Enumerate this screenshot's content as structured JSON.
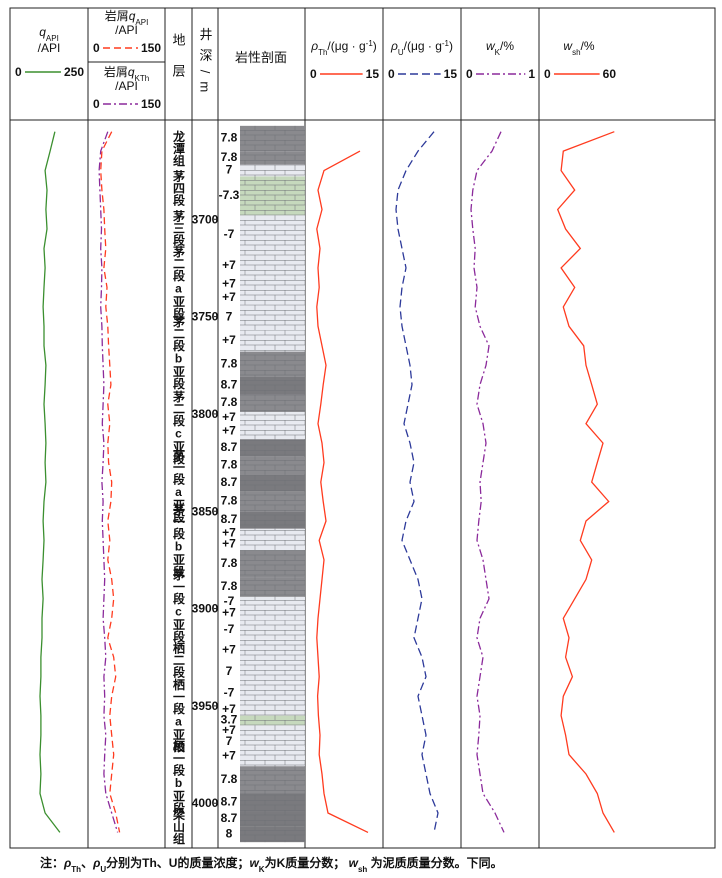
{
  "chart_data": {
    "type": "well_log",
    "formation_header": "地层",
    "depth_header": "井深/m",
    "lithology_header": "岩性剖面",
    "ylim": [
      3649,
      4023
    ],
    "yticks": [
      3700,
      3750,
      3800,
      3850,
      3900,
      3950,
      4000
    ],
    "depth": [
      3655,
      3665,
      3675,
      3685,
      3695,
      3705,
      3715,
      3725,
      3735,
      3745,
      3755,
      3765,
      3775,
      3785,
      3795,
      3805,
      3815,
      3825,
      3835,
      3845,
      3855,
      3865,
      3875,
      3885,
      3895,
      3905,
      3915,
      3925,
      3935,
      3945,
      3955,
      3965,
      3975,
      3985,
      3995,
      4005,
      4015
    ],
    "tracks": [
      {
        "label": [
          {
            "t": "q",
            "s": "i"
          },
          {
            "t": "API",
            "s": "sub"
          }
        ],
        "unit": "/API",
        "xlim": [
          0,
          250
        ],
        "xticks": [
          0,
          250
        ],
        "color": "#3b8f2f",
        "dash": "none",
        "values": [
          146,
          129,
          111,
          118,
          114,
          118,
          107,
          111,
          107,
          104,
          107,
          107,
          114,
          111,
          107,
          111,
          114,
          111,
          114,
          107,
          104,
          107,
          104,
          100,
          104,
          100,
          100,
          96,
          96,
          93,
          96,
          96,
          93,
          96,
          93,
          111,
          164
        ]
      },
      {
        "label": [
          {
            "t": "岩屑"
          },
          {
            "t": "q",
            "s": "i"
          },
          {
            "t": "API",
            "s": "sub"
          }
        ],
        "unit": "/API",
        "xlim": [
          0,
          150
        ],
        "xticks": [
          0,
          150
        ],
        "color": "#ff3b1f",
        "dash": "7,4",
        "values": [
          40,
          15,
          12,
          15,
          20,
          22,
          25,
          20,
          28,
          25,
          30,
          32,
          35,
          38,
          30,
          35,
          30,
          32,
          40,
          38,
          30,
          35,
          30,
          40,
          45,
          40,
          30,
          45,
          50,
          40,
          35,
          40,
          45,
          40,
          35,
          50,
          60
        ]
      },
      {
        "label": [
          {
            "t": "岩屑"
          },
          {
            "t": "q",
            "s": "i"
          },
          {
            "t": "KTh",
            "s": "sub"
          }
        ],
        "unit": "/API",
        "xlim": [
          0,
          150
        ],
        "xticks": [
          0,
          150
        ],
        "color": "#8b2a9b",
        "dash": "8,3,2,3",
        "values": [
          30,
          12,
          8,
          10,
          12,
          14,
          12,
          15,
          14,
          12,
          15,
          16,
          18,
          20,
          18,
          16,
          20,
          18,
          15,
          18,
          16,
          18,
          20,
          22,
          20,
          18,
          22,
          25,
          20,
          22,
          20,
          25,
          22,
          20,
          25,
          40,
          55
        ]
      },
      {
        "label": [
          {
            "t": "ρ",
            "s": "i"
          },
          {
            "t": "Th",
            "s": "sub"
          },
          {
            "t": "/(μg · g"
          },
          {
            "t": "-1",
            "s": "sup"
          },
          {
            "t": ")"
          }
        ],
        "xlim": [
          0,
          15
        ],
        "xticks": [
          0,
          15
        ],
        "color": "#ff3b1f",
        "dash": "none",
        "values": [
          null,
          12,
          3,
          1.5,
          2.5,
          1.2,
          2,
          1.5,
          1.8,
          1.2,
          1.5,
          2.5,
          3.5,
          2.8,
          2.2,
          1.5,
          2.5,
          3,
          2.2,
          2.8,
          3.5,
          1.8,
          3,
          2.5,
          2,
          1.5,
          1.2,
          1.5,
          1.8,
          1.4,
          1.6,
          2,
          1.8,
          2.5,
          3,
          4,
          14
        ]
      },
      {
        "label": [
          {
            "t": "ρ",
            "s": "i"
          },
          {
            "t": "U",
            "s": "sub"
          },
          {
            "t": "/(μg · g"
          },
          {
            "t": "-1",
            "s": "sup"
          },
          {
            "t": ")"
          }
        ],
        "xlim": [
          0,
          15
        ],
        "xticks": [
          0,
          15
        ],
        "color": "#2d3a9a",
        "dash": "8,4",
        "values": [
          11,
          7,
          4,
          2,
          1.5,
          2,
          3,
          4,
          3,
          2.5,
          3,
          4,
          5,
          5.5,
          4.5,
          3.5,
          5,
          6,
          5,
          6,
          4,
          3,
          5,
          7,
          8,
          7,
          6,
          8,
          9,
          7,
          8,
          9,
          8,
          9,
          10,
          12,
          11
        ]
      },
      {
        "label": [
          {
            "t": "w",
            "s": "i"
          },
          {
            "t": "K",
            "s": "sub"
          },
          {
            "t": "/%"
          }
        ],
        "xlim": [
          0,
          1
        ],
        "xticks": [
          0,
          1
        ],
        "color": "#8b2a9b",
        "dash": "8,3,2,3",
        "values": [
          0.55,
          0.4,
          0.15,
          0.08,
          0.05,
          0.08,
          0.12,
          0.1,
          0.15,
          0.12,
          0.2,
          0.35,
          0.3,
          0.2,
          0.15,
          0.25,
          0.3,
          0.25,
          0.2,
          0.22,
          0.18,
          0.15,
          0.25,
          0.3,
          0.35,
          0.2,
          0.15,
          0.25,
          0.2,
          0.15,
          0.2,
          0.18,
          0.15,
          0.2,
          0.25,
          0.45,
          0.6
        ]
      },
      {
        "label": [
          {
            "t": "w",
            "s": "i"
          },
          {
            "t": "sh",
            "s": "sub"
          },
          {
            "t": "/%"
          }
        ],
        "xlim": [
          0,
          60
        ],
        "xticks": [
          0,
          60
        ],
        "color": "#ff3b1f",
        "dash": "none",
        "values": [
          55,
          10,
          8,
          20,
          5,
          12,
          25,
          8,
          20,
          10,
          15,
          28,
          30,
          35,
          40,
          30,
          45,
          40,
          35,
          50,
          30,
          25,
          35,
          30,
          20,
          10,
          15,
          12,
          18,
          10,
          8,
          12,
          15,
          30,
          40,
          45,
          55
        ]
      }
    ],
    "formations": [
      {
        "name": "龙潭组",
        "top": 3652,
        "base": 3675
      },
      {
        "name": "茅四段",
        "top": 3675,
        "base": 3693
      },
      {
        "name": "茅三段",
        "top": 3693,
        "base": 3716
      },
      {
        "name": "茅二段a亚段",
        "top": 3716,
        "base": 3749
      },
      {
        "name": "茅二段b亚段",
        "top": 3749,
        "base": 3788
      },
      {
        "name": "茅二段c亚段",
        "top": 3788,
        "base": 3826
      },
      {
        "name": "茅一段a亚段",
        "top": 3828,
        "base": 3846
      },
      {
        "name": "茅一段b亚段",
        "top": 3848,
        "base": 3882
      },
      {
        "name": "茅一段c亚段",
        "top": 3882,
        "base": 3915
      },
      {
        "name": "栖二段",
        "top": 3915,
        "base": 3938
      },
      {
        "name": "栖一段a亚段",
        "top": 3938,
        "base": 3972
      },
      {
        "name": "栖一段b亚段",
        "top": 3972,
        "base": 4001
      },
      {
        "name": "梁山组",
        "top": 4001,
        "base": 4023
      }
    ],
    "lithology": [
      {
        "top": 3652,
        "base": 3665,
        "code": "7.8",
        "color": "#8a8a8e"
      },
      {
        "top": 3665,
        "base": 3672,
        "code": "7.8",
        "color": "#8a8a8e"
      },
      {
        "top": 3672,
        "base": 3678,
        "code": "7",
        "color": "#e8eaf0"
      },
      {
        "top": 3678,
        "base": 3698,
        "code": "-7.3",
        "color": "#c6d9bd"
      },
      {
        "top": 3698,
        "base": 3718,
        "code": "-7",
        "color": "#e8eaf0"
      },
      {
        "top": 3718,
        "base": 3730,
        "code": "+7",
        "color": "#e8eaf0"
      },
      {
        "top": 3730,
        "base": 3737,
        "code": "+7",
        "color": "#e8eaf0"
      },
      {
        "top": 3737,
        "base": 3744,
        "code": "+7",
        "color": "#e8eaf0"
      },
      {
        "top": 3744,
        "base": 3757,
        "code": "7",
        "color": "#e8eaf0"
      },
      {
        "top": 3757,
        "base": 3768,
        "code": "+7",
        "color": "#e8eaf0"
      },
      {
        "top": 3768,
        "base": 3781,
        "code": "7.8",
        "color": "#8a8a8e"
      },
      {
        "top": 3781,
        "base": 3790,
        "code": "8.7",
        "color": "#7a7a7e"
      },
      {
        "top": 3790,
        "base": 3799,
        "code": "7.8",
        "color": "#8a8a8e"
      },
      {
        "top": 3799,
        "base": 3805,
        "code": "+7",
        "color": "#e8eaf0"
      },
      {
        "top": 3805,
        "base": 3813,
        "code": "+7",
        "color": "#e8eaf0"
      },
      {
        "top": 3813,
        "base": 3822,
        "code": "8.7",
        "color": "#7a7a7e"
      },
      {
        "top": 3822,
        "base": 3831,
        "code": "7.8",
        "color": "#8a8a8e"
      },
      {
        "top": 3831,
        "base": 3840,
        "code": "8.7",
        "color": "#7a7a7e"
      },
      {
        "top": 3840,
        "base": 3850,
        "code": "7.8",
        "color": "#8a8a8e"
      },
      {
        "top": 3850,
        "base": 3859,
        "code": "8.7",
        "color": "#7a7a7e"
      },
      {
        "top": 3859,
        "base": 3864,
        "code": "+7",
        "color": "#e8eaf0"
      },
      {
        "top": 3864,
        "base": 3870,
        "code": "+7",
        "color": "#e8eaf0"
      },
      {
        "top": 3870,
        "base": 3884,
        "code": "7.8",
        "color": "#8a8a8e"
      },
      {
        "top": 3884,
        "base": 3894,
        "code": "7.8",
        "color": "#8a8a8e"
      },
      {
        "top": 3894,
        "base": 3899,
        "code": "-7",
        "color": "#e8eaf0"
      },
      {
        "top": 3899,
        "base": 3906,
        "code": "+7",
        "color": "#e8eaf0"
      },
      {
        "top": 3906,
        "base": 3916,
        "code": "-7",
        "color": "#e8eaf0"
      },
      {
        "top": 3916,
        "base": 3927,
        "code": "+7",
        "color": "#e8eaf0"
      },
      {
        "top": 3927,
        "base": 3938,
        "code": "7",
        "color": "#e8eaf0"
      },
      {
        "top": 3938,
        "base": 3949,
        "code": "-7",
        "color": "#e8eaf0"
      },
      {
        "top": 3949,
        "base": 3955,
        "code": "+7",
        "color": "#e8eaf0"
      },
      {
        "top": 3955,
        "base": 3960,
        "code": "3.7",
        "color": "#c6d9bd"
      },
      {
        "top": 3960,
        "base": 3966,
        "code": "+7",
        "color": "#e8eaf0"
      },
      {
        "top": 3966,
        "base": 3971,
        "code": "7",
        "color": "#e8eaf0"
      },
      {
        "top": 3971,
        "base": 3981,
        "code": "+7",
        "color": "#e8eaf0"
      },
      {
        "top": 3981,
        "base": 3995,
        "code": "7.8",
        "color": "#8a8a8e"
      },
      {
        "top": 3995,
        "base": 4004,
        "code": "8.7",
        "color": "#7a7a7e"
      },
      {
        "top": 4004,
        "base": 4012,
        "code": "8.7",
        "color": "#7a7a7e"
      },
      {
        "top": 4012,
        "base": 4020,
        "code": "8",
        "color": "#7a7a7e"
      }
    ],
    "note": [
      {
        "t": "注："
      },
      {
        "t": "ρ",
        "s": "i"
      },
      {
        "t": "Th",
        "s": "sub"
      },
      {
        "t": "、"
      },
      {
        "t": "ρ",
        "s": "i"
      },
      {
        "t": "U",
        "s": "sub"
      },
      {
        "t": "分别为Th、U的质量浓度；"
      },
      {
        "t": "w",
        "s": "i"
      },
      {
        "t": "K",
        "s": "sub"
      },
      {
        "t": "为K质量分数； "
      },
      {
        "t": "w",
        "s": "i"
      },
      {
        "t": "sh",
        "s": "sub"
      },
      {
        "t": " 为泥质质量分数。下同。"
      }
    ]
  }
}
